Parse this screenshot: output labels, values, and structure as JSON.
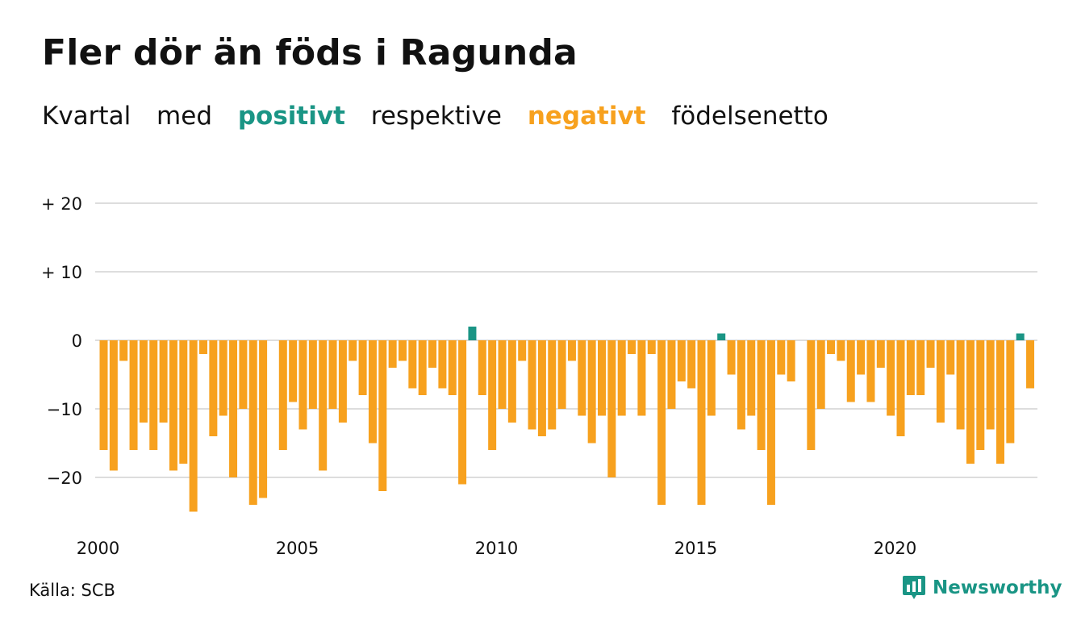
{
  "title": "Fler dör än föds i Ragunda",
  "subtitle": {
    "w1": "Kvartal",
    "w2": "med",
    "positive": "positivt",
    "w3": "respektive",
    "negative": "negativt",
    "w4": "födelsenetto"
  },
  "source": "Källa: SCB",
  "brand": "Newsworthy",
  "colors": {
    "positive": "#1a9585",
    "negative": "#f7a11e",
    "grid": "#dddddd",
    "text": "#111111"
  },
  "chart_data": {
    "type": "bar",
    "y_ticks": [
      {
        "value": 20,
        "label": "+ 20"
      },
      {
        "value": 10,
        "label": "+ 10"
      },
      {
        "value": 0,
        "label": "0"
      },
      {
        "value": -10,
        "label": "−10"
      },
      {
        "value": -20,
        "label": "−20"
      }
    ],
    "x_ticks": [
      {
        "year": 2000,
        "label": "2000"
      },
      {
        "year": 2005,
        "label": "2005"
      },
      {
        "year": 2010,
        "label": "2010"
      },
      {
        "year": 2015,
        "label": "2015"
      },
      {
        "year": 2020,
        "label": "2020"
      }
    ],
    "ylim": [
      -26,
      20
    ],
    "grid": true,
    "start": "2000 Q1",
    "values": [
      -16,
      -19,
      -3,
      -16,
      -12,
      -16,
      -12,
      -19,
      -18,
      -25,
      -2,
      -14,
      -11,
      -20,
      -10,
      -24,
      -23,
      0,
      -16,
      -9,
      -13,
      -10,
      -19,
      -10,
      -12,
      -3,
      -8,
      -15,
      -22,
      -4,
      -3,
      -7,
      -8,
      -4,
      -7,
      -8,
      -21,
      2,
      -8,
      -16,
      -10,
      -12,
      -3,
      -13,
      -14,
      -13,
      -10,
      -3,
      -11,
      -15,
      -11,
      -20,
      -11,
      -2,
      -11,
      -2,
      -24,
      -10,
      -6,
      -7,
      -24,
      -11,
      1,
      -5,
      -13,
      -11,
      -16,
      -24,
      -5,
      -6,
      0,
      -16,
      -10,
      -2,
      -3,
      -9,
      -5,
      -9,
      -4,
      -11,
      -14,
      -8,
      -8,
      -4,
      -12,
      -5,
      -13,
      -18,
      -16,
      -13,
      -18,
      -15,
      1,
      -7
    ]
  }
}
